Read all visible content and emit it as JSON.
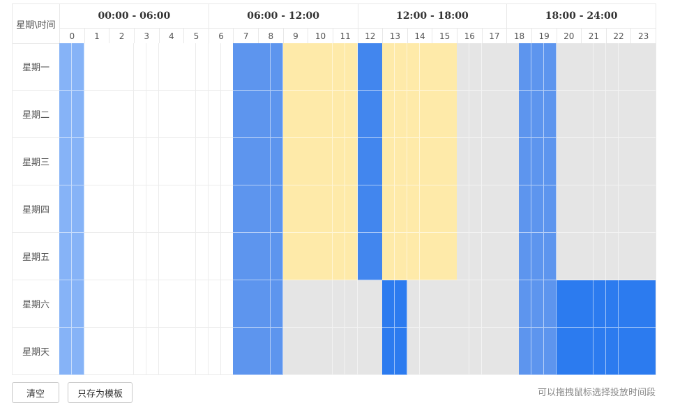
{
  "header": {
    "corner": "星期\\时间",
    "groups": [
      "00:00 - 06:00",
      "06:00 - 12:00",
      "12:00 - 18:00",
      "18:00 - 24:00"
    ],
    "hours": [
      0,
      1,
      2,
      3,
      4,
      5,
      6,
      7,
      8,
      9,
      10,
      11,
      12,
      13,
      14,
      15,
      16,
      17,
      18,
      19,
      20,
      21,
      22,
      23
    ]
  },
  "rows": [
    {
      "day": "星期一",
      "blocks": [
        {
          "start": 0,
          "end": 1,
          "color": "#86b3f7"
        },
        {
          "start": 7,
          "end": 9,
          "color": "#5d95ee"
        },
        {
          "start": 9,
          "end": 12,
          "color": "#feeaa9"
        },
        {
          "start": 12,
          "end": 13,
          "color": "#4286ee"
        },
        {
          "start": 13,
          "end": 16,
          "color": "#feeaa9"
        },
        {
          "start": 16,
          "end": 18.5,
          "color": "#e5e5e5"
        },
        {
          "start": 18.5,
          "end": 20,
          "color": "#5d95ee"
        },
        {
          "start": 20,
          "end": 24,
          "color": "#e5e5e5"
        }
      ]
    },
    {
      "day": "星期二",
      "blocks": [
        {
          "start": 0,
          "end": 1,
          "color": "#86b3f7"
        },
        {
          "start": 7,
          "end": 9,
          "color": "#5d95ee"
        },
        {
          "start": 9,
          "end": 12,
          "color": "#feeaa9"
        },
        {
          "start": 12,
          "end": 13,
          "color": "#4286ee"
        },
        {
          "start": 13,
          "end": 16,
          "color": "#feeaa9"
        },
        {
          "start": 16,
          "end": 18.5,
          "color": "#e5e5e5"
        },
        {
          "start": 18.5,
          "end": 20,
          "color": "#5d95ee"
        },
        {
          "start": 20,
          "end": 24,
          "color": "#e5e5e5"
        }
      ]
    },
    {
      "day": "星期三",
      "blocks": [
        {
          "start": 0,
          "end": 1,
          "color": "#86b3f7"
        },
        {
          "start": 7,
          "end": 9,
          "color": "#5d95ee"
        },
        {
          "start": 9,
          "end": 12,
          "color": "#feeaa9"
        },
        {
          "start": 12,
          "end": 13,
          "color": "#4286ee"
        },
        {
          "start": 13,
          "end": 16,
          "color": "#feeaa9"
        },
        {
          "start": 16,
          "end": 18.5,
          "color": "#e5e5e5"
        },
        {
          "start": 18.5,
          "end": 20,
          "color": "#5d95ee"
        },
        {
          "start": 20,
          "end": 24,
          "color": "#e5e5e5"
        }
      ]
    },
    {
      "day": "星期四",
      "blocks": [
        {
          "start": 0,
          "end": 1,
          "color": "#86b3f7"
        },
        {
          "start": 7,
          "end": 9,
          "color": "#5d95ee"
        },
        {
          "start": 9,
          "end": 12,
          "color": "#feeaa9"
        },
        {
          "start": 12,
          "end": 13,
          "color": "#4286ee"
        },
        {
          "start": 13,
          "end": 16,
          "color": "#feeaa9"
        },
        {
          "start": 16,
          "end": 18.5,
          "color": "#e5e5e5"
        },
        {
          "start": 18.5,
          "end": 20,
          "color": "#5d95ee"
        },
        {
          "start": 20,
          "end": 24,
          "color": "#e5e5e5"
        }
      ]
    },
    {
      "day": "星期五",
      "blocks": [
        {
          "start": 0,
          "end": 1,
          "color": "#86b3f7"
        },
        {
          "start": 7,
          "end": 9,
          "color": "#5d95ee"
        },
        {
          "start": 9,
          "end": 12,
          "color": "#feeaa9"
        },
        {
          "start": 12,
          "end": 13,
          "color": "#4286ee"
        },
        {
          "start": 13,
          "end": 16,
          "color": "#feeaa9"
        },
        {
          "start": 16,
          "end": 18.5,
          "color": "#e5e5e5"
        },
        {
          "start": 18.5,
          "end": 20,
          "color": "#5d95ee"
        },
        {
          "start": 20,
          "end": 24,
          "color": "#e5e5e5"
        }
      ]
    },
    {
      "day": "星期六",
      "blocks": [
        {
          "start": 0,
          "end": 1,
          "color": "#86b3f7"
        },
        {
          "start": 7,
          "end": 9,
          "color": "#5d95ee"
        },
        {
          "start": 9,
          "end": 13,
          "color": "#e5e5e5"
        },
        {
          "start": 13,
          "end": 14,
          "color": "#2c7bef"
        },
        {
          "start": 14,
          "end": 18.5,
          "color": "#e5e5e5"
        },
        {
          "start": 18.5,
          "end": 20,
          "color": "#5d95ee"
        },
        {
          "start": 20,
          "end": 24,
          "color": "#2c7bef"
        }
      ]
    },
    {
      "day": "星期天",
      "blocks": [
        {
          "start": 0,
          "end": 1,
          "color": "#86b3f7"
        },
        {
          "start": 7,
          "end": 9,
          "color": "#5d95ee"
        },
        {
          "start": 9,
          "end": 13,
          "color": "#e5e5e5"
        },
        {
          "start": 13,
          "end": 14,
          "color": "#2c7bef"
        },
        {
          "start": 14,
          "end": 18.5,
          "color": "#e5e5e5"
        },
        {
          "start": 18.5,
          "end": 20,
          "color": "#5d95ee"
        },
        {
          "start": 20,
          "end": 24,
          "color": "#2c7bef"
        }
      ]
    }
  ],
  "buttons": [
    "清空",
    "只存为模板"
  ],
  "hint": "可以拖拽鼠标选择投放时间段"
}
